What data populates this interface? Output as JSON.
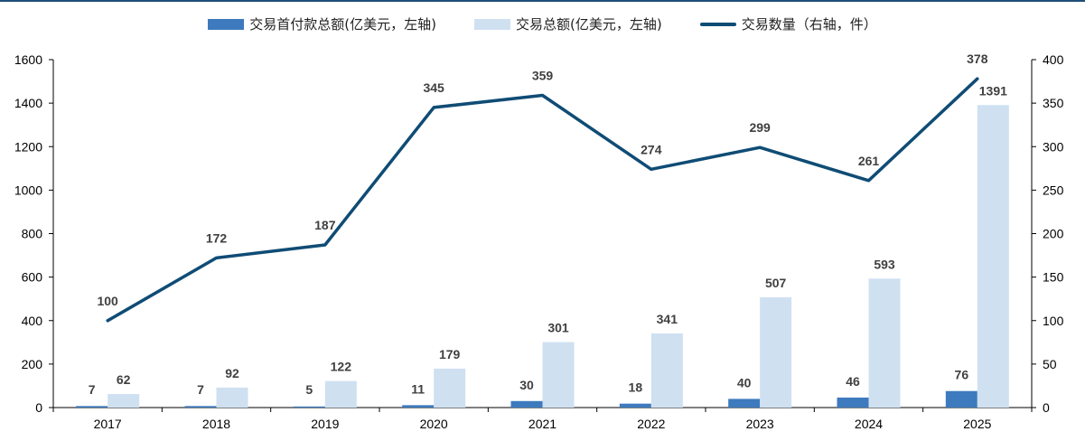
{
  "legend": {
    "down_payment": "交易首付款总额(亿美元，左轴)",
    "total_value": "交易总额(亿美元，左轴)",
    "deal_count": "交易数量（右轴，件）"
  },
  "colors": {
    "down_payment": "#3d7abe",
    "total_value": "#cfe0f1",
    "deal_count": "#0f4c75",
    "axis": "#000000",
    "label": "#404040"
  },
  "chart_data": {
    "type": "bar",
    "categories": [
      "2017",
      "2018",
      "2019",
      "2020",
      "2021",
      "2022",
      "2023",
      "2024",
      "2025"
    ],
    "series": [
      {
        "key": "down_payment",
        "type": "bar",
        "axis": "left",
        "values": [
          7,
          7,
          5,
          11,
          30,
          18,
          40,
          46,
          76
        ]
      },
      {
        "key": "total_value",
        "type": "bar",
        "axis": "left",
        "values": [
          62,
          92,
          122,
          179,
          301,
          341,
          507,
          593,
          1391
        ]
      },
      {
        "key": "deal_count",
        "type": "line",
        "axis": "right",
        "values": [
          100,
          172,
          187,
          345,
          359,
          274,
          299,
          261,
          378
        ]
      }
    ],
    "y_left": {
      "range": [
        0,
        1600
      ],
      "ticks": [
        "0",
        "200",
        "400",
        "600",
        "800",
        "1000",
        "1200",
        "1400",
        "1600"
      ]
    },
    "y_right": {
      "range": [
        0,
        400
      ],
      "ticks": [
        "0",
        "50",
        "100",
        "150",
        "200",
        "250",
        "300",
        "350",
        "400"
      ]
    },
    "grid": false,
    "legend_position": "top-center"
  }
}
